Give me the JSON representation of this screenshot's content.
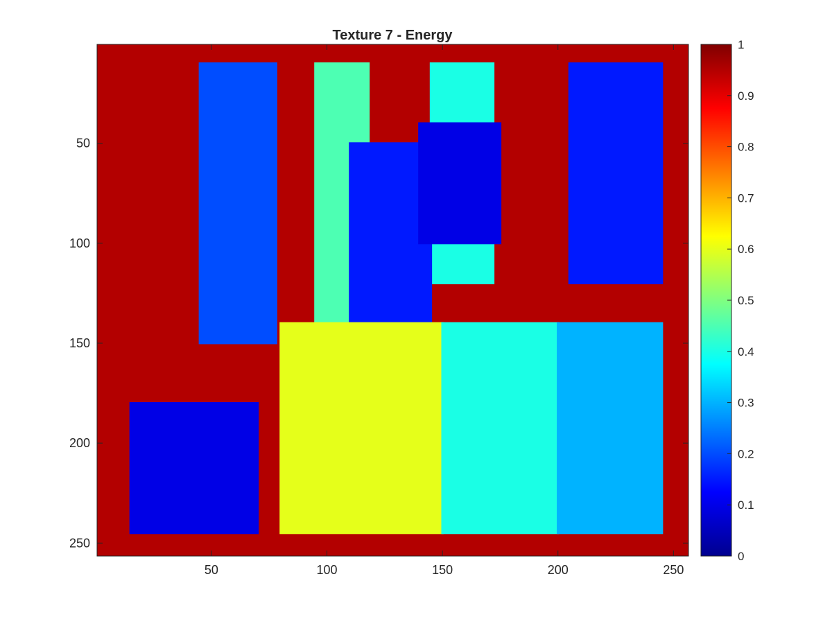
{
  "chart_data": {
    "type": "heatmap",
    "title": "Texture 7 - Energy",
    "xlabel": "",
    "ylabel": "",
    "x_range": [
      1,
      256
    ],
    "y_range": [
      1,
      256
    ],
    "x_ticks": [
      50,
      100,
      150,
      200,
      250
    ],
    "y_ticks": [
      50,
      100,
      150,
      200,
      250
    ],
    "y_reversed": true,
    "colormap": "jet",
    "colorbar": {
      "range": [
        0,
        1
      ],
      "ticks": [
        0,
        0.1,
        0.2,
        0.3,
        0.4,
        0.5,
        0.6,
        0.7,
        0.8,
        0.9,
        1
      ],
      "tick_labels": [
        "0",
        "0.1",
        "0.2",
        "0.3",
        "0.4",
        "0.5",
        "0.6",
        "0.7",
        "0.8",
        "0.9",
        "1"
      ]
    },
    "grid": false,
    "summary_regions": [
      {
        "x": [
          1,
          256
        ],
        "y": [
          1,
          256
        ],
        "value": 0.95
      },
      {
        "x": [
          45,
          78
        ],
        "y": [
          10,
          150
        ],
        "value": 0.2
      },
      {
        "x": [
          95,
          118
        ],
        "y": [
          10,
          150
        ],
        "value": 0.45
      },
      {
        "x": [
          145,
          172
        ],
        "y": [
          10,
          120
        ],
        "value": 0.4
      },
      {
        "x": [
          205,
          245
        ],
        "y": [
          10,
          120
        ],
        "value": 0.15
      },
      {
        "x": [
          110,
          145
        ],
        "y": [
          50,
          140
        ],
        "value": 0.15
      },
      {
        "x": [
          140,
          175
        ],
        "y": [
          40,
          100
        ],
        "value": 0.1
      },
      {
        "x": [
          15,
          70
        ],
        "y": [
          180,
          245
        ],
        "value": 0.1
      },
      {
        "x": [
          80,
          150
        ],
        "y": [
          140,
          245
        ],
        "value": 0.6
      },
      {
        "x": [
          150,
          200
        ],
        "y": [
          140,
          245
        ],
        "value": 0.4
      },
      {
        "x": [
          200,
          245
        ],
        "y": [
          140,
          245
        ],
        "value": 0.3
      }
    ]
  }
}
